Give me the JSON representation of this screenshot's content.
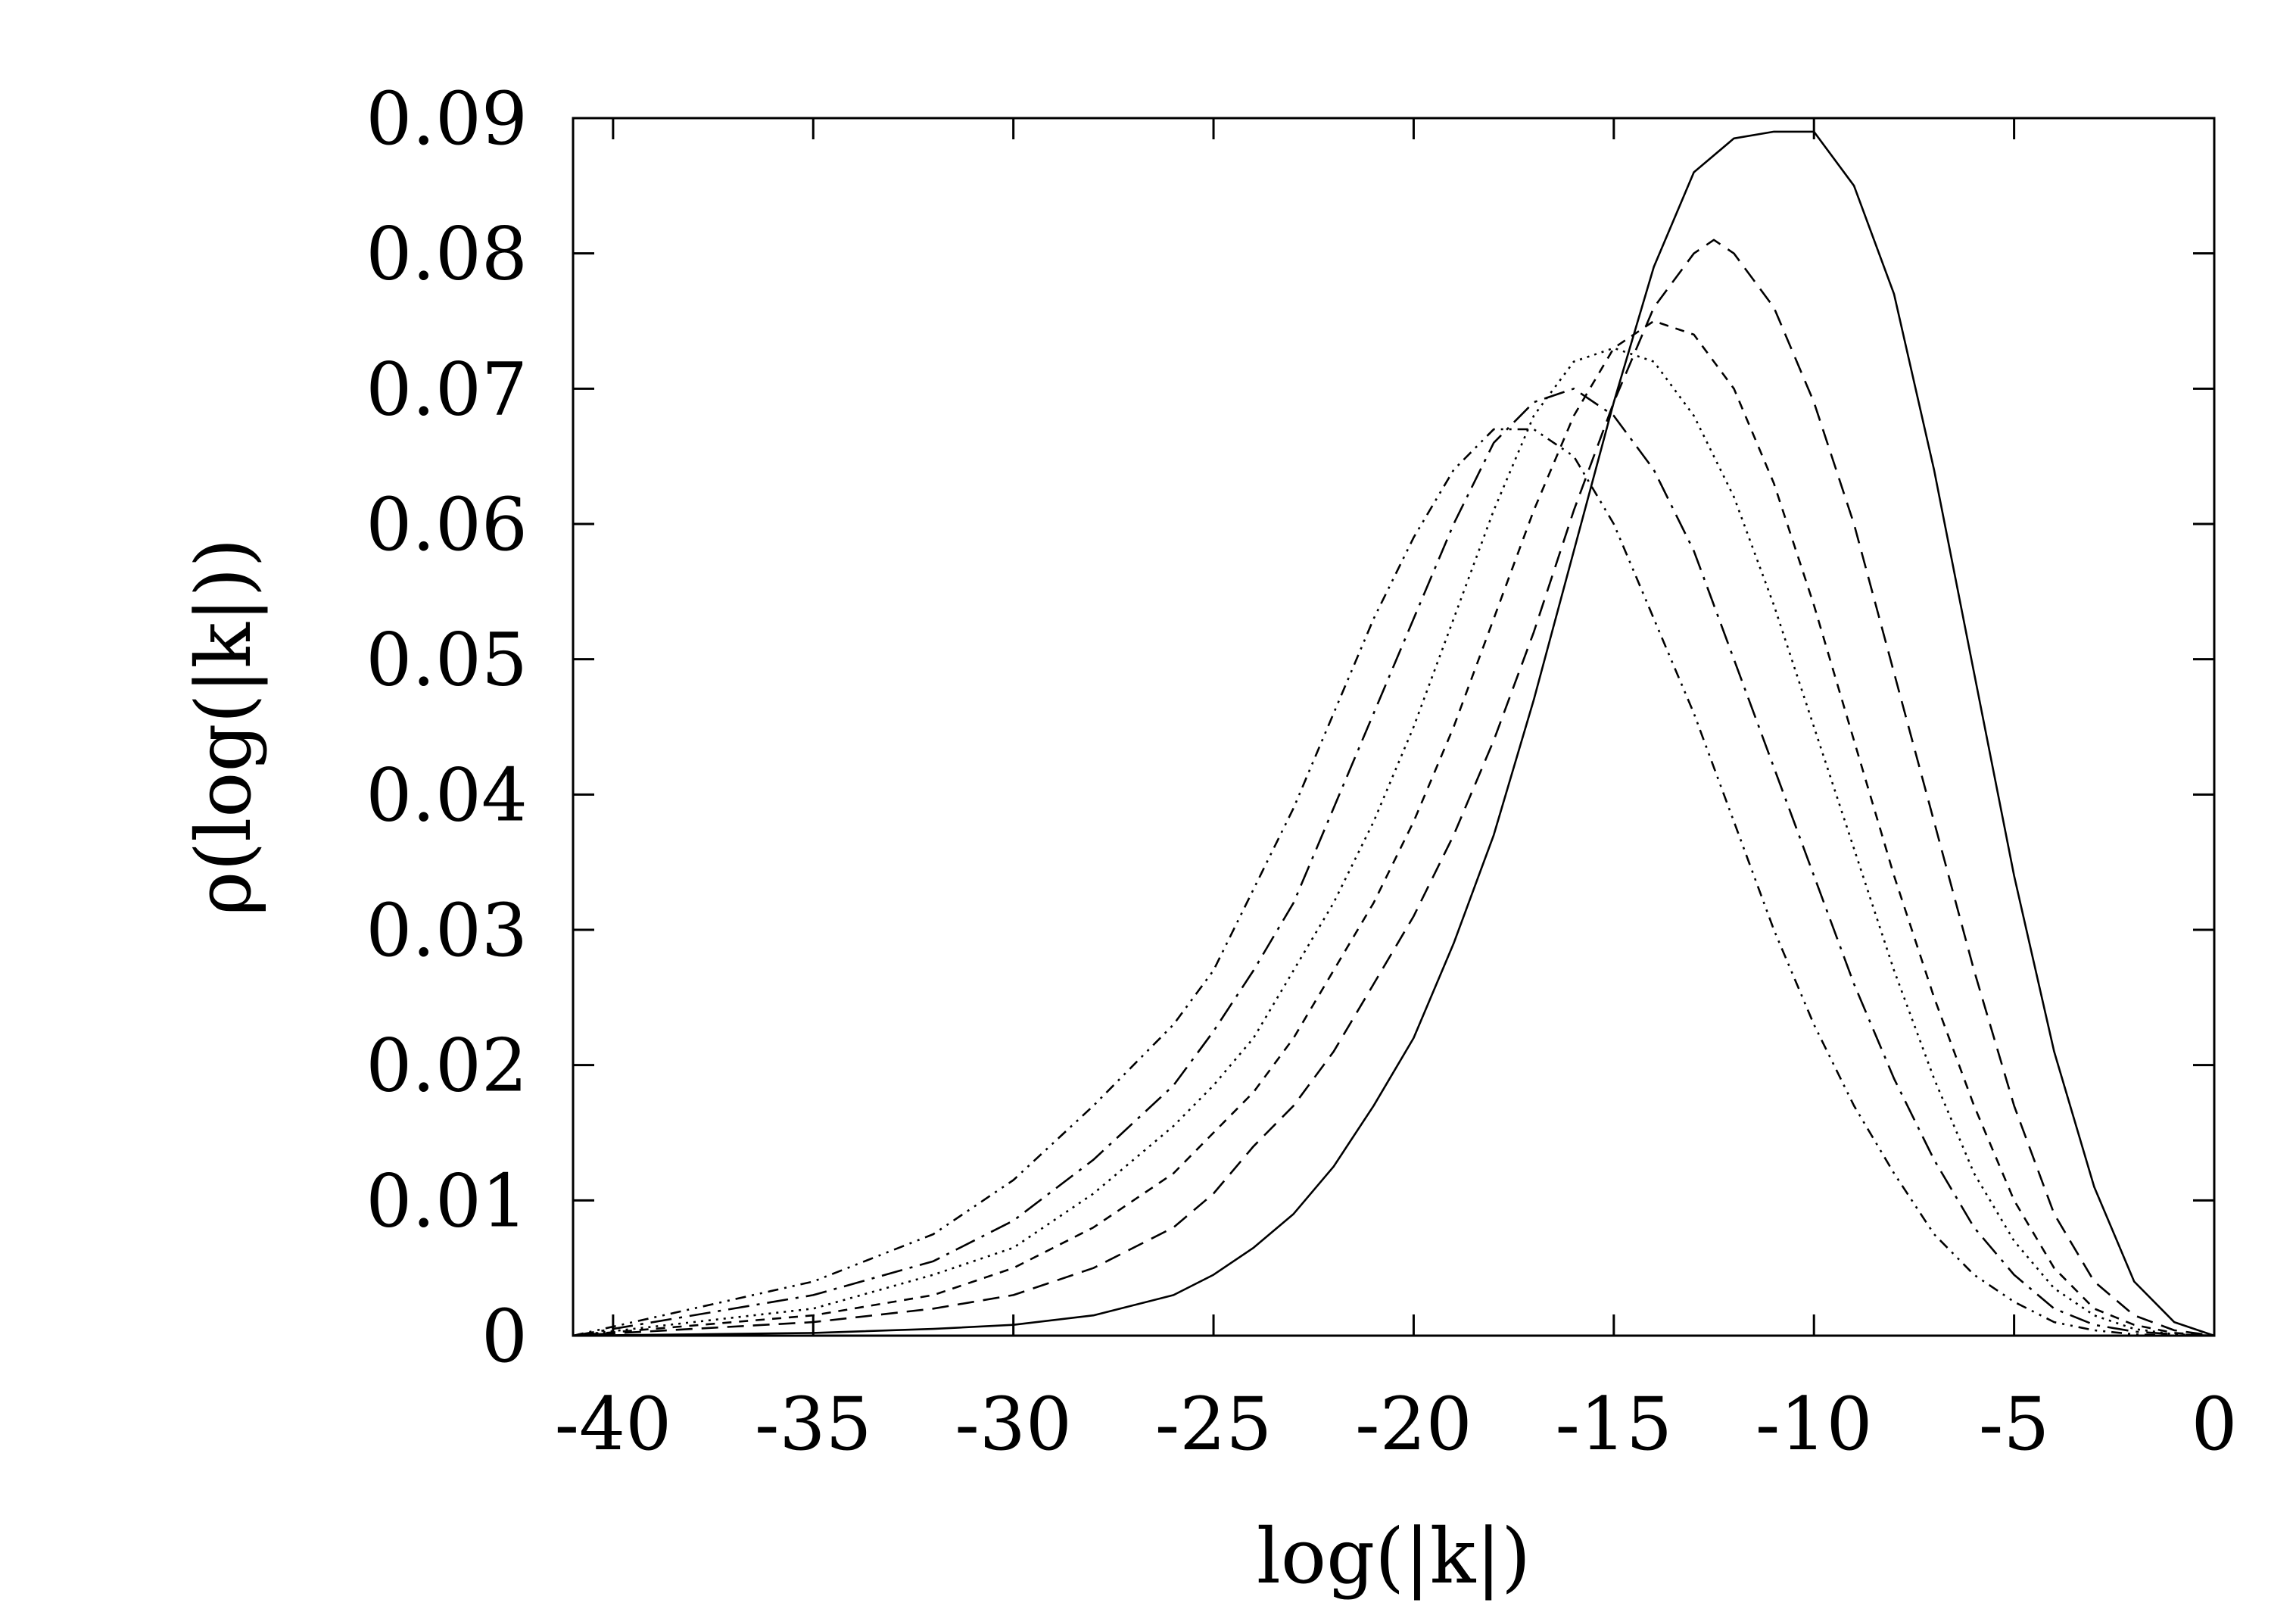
{
  "chart_data": {
    "type": "line",
    "title": "",
    "xlabel": "log(|k|)",
    "ylabel": "ρ(log(|k|))",
    "xlim": [
      -41,
      0
    ],
    "ylim": [
      0,
      0.09
    ],
    "x_ticks": [
      -40,
      -35,
      -30,
      -25,
      -20,
      -15,
      -10,
      -5,
      0
    ],
    "x_tick_labels": [
      "-40",
      "-35",
      "-30",
      "-25",
      "-20",
      "-15",
      "-10",
      "-5",
      "0"
    ],
    "y_ticks": [
      0,
      0.01,
      0.02,
      0.03,
      0.04,
      0.05,
      0.06,
      0.07,
      0.08,
      0.09
    ],
    "y_tick_labels": [
      "0",
      "0.01",
      "0.02",
      "0.03",
      "0.04",
      "0.05",
      "0.06",
      "0.07",
      "0.08",
      "0.09"
    ],
    "grid": false,
    "legend": "none",
    "series": [
      {
        "style": "solid",
        "x": [
          -41,
          -35,
          -32,
          -30,
          -28,
          -26,
          -25,
          -24,
          -23,
          -22,
          -21,
          -20,
          -19,
          -18,
          -17,
          -16,
          -15,
          -14,
          -13,
          -12,
          -11,
          -10,
          -9,
          -8,
          -7,
          -6,
          -5,
          -4,
          -3,
          -2,
          -1,
          0
        ],
        "y": [
          0.0,
          0.0002,
          0.0005,
          0.0008,
          0.0015,
          0.003,
          0.0045,
          0.0065,
          0.009,
          0.0125,
          0.017,
          0.022,
          0.029,
          0.037,
          0.047,
          0.058,
          0.069,
          0.079,
          0.086,
          0.0885,
          0.089,
          0.089,
          0.085,
          0.077,
          0.064,
          0.049,
          0.034,
          0.021,
          0.011,
          0.004,
          0.001,
          0.0
        ]
      },
      {
        "style": "dashed",
        "x": [
          -41,
          -35,
          -32,
          -30,
          -28,
          -26,
          -25,
          -24,
          -23,
          -22,
          -21,
          -20,
          -19,
          -18,
          -17,
          -16,
          -15,
          -14,
          -13,
          -12.5,
          -12,
          -11,
          -10,
          -9,
          -8,
          -7,
          -6,
          -5,
          -4,
          -3,
          -2,
          -1,
          0
        ],
        "y": [
          0.0,
          0.001,
          0.002,
          0.003,
          0.005,
          0.008,
          0.0105,
          0.014,
          0.017,
          0.021,
          0.026,
          0.031,
          0.037,
          0.044,
          0.052,
          0.061,
          0.069,
          0.076,
          0.08,
          0.081,
          0.08,
          0.076,
          0.069,
          0.06,
          0.049,
          0.038,
          0.027,
          0.017,
          0.009,
          0.004,
          0.0015,
          0.0004,
          0.0
        ]
      },
      {
        "style": "short-dashed",
        "x": [
          -41,
          -35,
          -32,
          -30,
          -28,
          -26,
          -25,
          -24,
          -23,
          -22,
          -21,
          -20,
          -19,
          -18,
          -17,
          -16,
          -15,
          -14,
          -13,
          -12,
          -11,
          -10,
          -9,
          -8,
          -7,
          -6,
          -5,
          -4,
          -3,
          -2,
          -1,
          0
        ],
        "y": [
          0.0,
          0.0015,
          0.003,
          0.005,
          0.008,
          0.012,
          0.015,
          0.018,
          0.022,
          0.027,
          0.032,
          0.038,
          0.045,
          0.053,
          0.061,
          0.068,
          0.073,
          0.075,
          0.074,
          0.07,
          0.063,
          0.054,
          0.044,
          0.034,
          0.025,
          0.017,
          0.01,
          0.005,
          0.002,
          0.0008,
          0.0002,
          0.0
        ]
      },
      {
        "style": "dotted",
        "x": [
          -41,
          -35,
          -32,
          -30,
          -28,
          -26,
          -25,
          -24,
          -23,
          -22,
          -21,
          -20,
          -19,
          -18,
          -17,
          -16,
          -15,
          -14,
          -13,
          -12,
          -11,
          -10,
          -9,
          -8,
          -7,
          -6,
          -5,
          -4,
          -3,
          -2,
          -1,
          0
        ],
        "y": [
          0.0,
          0.002,
          0.0045,
          0.0065,
          0.0105,
          0.0155,
          0.0185,
          0.022,
          0.027,
          0.032,
          0.038,
          0.045,
          0.053,
          0.061,
          0.068,
          0.072,
          0.073,
          0.072,
          0.068,
          0.062,
          0.054,
          0.045,
          0.036,
          0.027,
          0.019,
          0.012,
          0.007,
          0.0035,
          0.0015,
          0.0005,
          0.0001,
          0.0
        ]
      },
      {
        "style": "long-dash-dot",
        "x": [
          -41,
          -35,
          -32,
          -30,
          -28,
          -26,
          -25,
          -24,
          -23,
          -22,
          -21,
          -20,
          -19,
          -18,
          -17,
          -16,
          -15,
          -14,
          -13,
          -12,
          -11,
          -10,
          -9,
          -8,
          -7,
          -6,
          -5,
          -4,
          -3,
          -2,
          -1,
          0
        ],
        "y": [
          0.0,
          0.003,
          0.0055,
          0.0085,
          0.013,
          0.0185,
          0.0225,
          0.027,
          0.032,
          0.039,
          0.046,
          0.053,
          0.06,
          0.066,
          0.069,
          0.07,
          0.068,
          0.064,
          0.058,
          0.05,
          0.042,
          0.034,
          0.026,
          0.019,
          0.013,
          0.008,
          0.0045,
          0.002,
          0.0008,
          0.0003,
          0.0001,
          0.0
        ]
      },
      {
        "style": "dash-dot-dot",
        "x": [
          -41,
          -35,
          -32,
          -30,
          -28,
          -26,
          -25,
          -24,
          -23,
          -22,
          -21,
          -20,
          -19,
          -18,
          -17,
          -16,
          -15,
          -14,
          -13,
          -12,
          -11,
          -10,
          -9,
          -8,
          -7,
          -6,
          -5,
          -4,
          -3,
          -2,
          -1,
          0
        ],
        "y": [
          0.0,
          0.004,
          0.0075,
          0.0115,
          0.017,
          0.023,
          0.027,
          0.033,
          0.039,
          0.046,
          0.053,
          0.059,
          0.064,
          0.067,
          0.067,
          0.065,
          0.06,
          0.053,
          0.046,
          0.038,
          0.03,
          0.023,
          0.017,
          0.012,
          0.0075,
          0.0045,
          0.0025,
          0.001,
          0.0004,
          0.0001,
          0.0,
          0.0
        ]
      }
    ]
  }
}
